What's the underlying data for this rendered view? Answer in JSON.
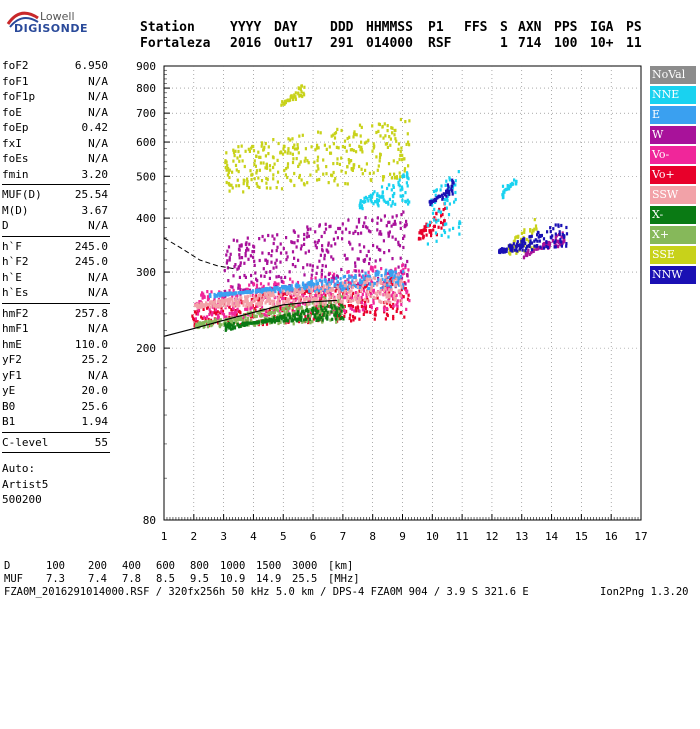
{
  "logo": {
    "line1": "Lowell",
    "line2": "DIGISONDE"
  },
  "header": {
    "labels": [
      "Station",
      "YYYY",
      "DAY",
      "DDD",
      "HHMMSS",
      "P1",
      "FFS",
      "S",
      "AXN",
      "PPS",
      "IGA",
      "PS"
    ],
    "values": [
      "Fortaleza",
      "2016",
      "Out17",
      "291",
      "014000",
      "RSF",
      "1",
      "714",
      "100",
      "10+",
      "11"
    ]
  },
  "params": {
    "group1": [
      {
        "k": "foF2",
        "v": "6.950"
      },
      {
        "k": "foF1",
        "v": "N/A"
      },
      {
        "k": "foF1p",
        "v": "N/A"
      },
      {
        "k": "foE",
        "v": "N/A"
      },
      {
        "k": "foEp",
        "v": "0.42"
      },
      {
        "k": "fxI",
        "v": "N/A"
      },
      {
        "k": "foEs",
        "v": "N/A"
      },
      {
        "k": "fmin",
        "v": "3.20"
      }
    ],
    "group2": [
      {
        "k": "MUF(D)",
        "v": "25.54"
      },
      {
        "k": "M(D)",
        "v": "3.67"
      },
      {
        "k": "D",
        "v": "N/A"
      }
    ],
    "group3": [
      {
        "k": "h`F",
        "v": "245.0"
      },
      {
        "k": "h`F2",
        "v": "245.0"
      },
      {
        "k": "h`E",
        "v": "N/A"
      },
      {
        "k": "h`Es",
        "v": "N/A"
      }
    ],
    "group4": [
      {
        "k": "hmF2",
        "v": "257.8"
      },
      {
        "k": "hmF1",
        "v": "N/A"
      },
      {
        "k": "hmE",
        "v": "110.0"
      },
      {
        "k": "yF2",
        "v": "25.2"
      },
      {
        "k": "yF1",
        "v": "N/A"
      },
      {
        "k": "yE",
        "v": "20.0"
      },
      {
        "k": "B0",
        "v": "25.6"
      },
      {
        "k": "B1",
        "v": "1.94"
      }
    ],
    "group5": [
      {
        "k": "C-level",
        "v": "55"
      }
    ],
    "auto": [
      "Auto:",
      "Artist5",
      "500200"
    ]
  },
  "legend": [
    {
      "label": "NoVal",
      "color": "#8c8c8c"
    },
    {
      "label": "NNE",
      "color": "#19d2f0"
    },
    {
      "label": "E",
      "color": "#3aa0f0"
    },
    {
      "label": "W",
      "color": "#a8129a"
    },
    {
      "label": "Vo-",
      "color": "#f0269a"
    },
    {
      "label": "Vo+",
      "color": "#e8002a"
    },
    {
      "label": "SSW",
      "color": "#f2a2a8"
    },
    {
      "label": "X-",
      "color": "#0a7a14"
    },
    {
      "label": "X+",
      "color": "#86b85a"
    },
    {
      "label": "SSE",
      "color": "#c8d21a"
    },
    {
      "label": "NNW",
      "color": "#1a10b4"
    }
  ],
  "footer": {
    "d_row": [
      "D",
      "100",
      "200",
      "400",
      "600",
      "800",
      "1000",
      "1500",
      "3000",
      "[km]"
    ],
    "muf_row": [
      "MUF",
      "7.3",
      "7.4",
      "7.8",
      "8.5",
      "9.5",
      "10.9",
      "14.9",
      "25.5",
      "[MHz]"
    ],
    "info": "FZA0M_2016291014000.RSF / 320fx256h 50 kHz 5.0 km / DPS-4 FZA0M 904 / 3.9 S 321.6 E",
    "version": "Ion2Png 1.3.20"
  },
  "chart_data": {
    "type": "scatter",
    "title": "",
    "xlabel": "",
    "ylabel": "",
    "xlim": [
      1,
      17
    ],
    "ylim": [
      80,
      900
    ],
    "y_scale": "log",
    "x_ticks": [
      1,
      2,
      3,
      4,
      5,
      6,
      7,
      8,
      9,
      10,
      11,
      12,
      13,
      14,
      15,
      16,
      17
    ],
    "y_ticks": [
      80,
      200,
      300,
      400,
      500,
      600,
      700,
      800,
      900
    ],
    "grid": true,
    "legend_position": "right",
    "series": [
      {
        "name": "Vo+",
        "color": "#e8002a",
        "regions": [
          {
            "x": [
              1.9,
              9.2
            ],
            "y": [
              225,
              300
            ]
          },
          {
            "x": [
              9.5,
              10.4
            ],
            "y": [
              360,
              440
            ]
          }
        ]
      },
      {
        "name": "Vo-",
        "color": "#f0269a",
        "regions": [
          {
            "x": [
              2.0,
              9.2
            ],
            "y": [
              235,
              320
            ]
          }
        ]
      },
      {
        "name": "W",
        "color": "#a8129a",
        "regions": [
          {
            "x": [
              3.0,
              9.2
            ],
            "y": [
              260,
              420
            ]
          },
          {
            "x": [
              13.0,
              14.4
            ],
            "y": [
              340,
              380
            ]
          }
        ]
      },
      {
        "name": "NNE",
        "color": "#19d2f0",
        "regions": [
          {
            "x": [
              7.5,
              9.2
            ],
            "y": [
              420,
              520
            ]
          },
          {
            "x": [
              9.8,
              10.9
            ],
            "y": [
              340,
              530
            ]
          },
          {
            "x": [
              12.3,
              12.8
            ],
            "y": [
              480,
              510
            ]
          }
        ]
      },
      {
        "name": "E",
        "color": "#3aa0f0",
        "regions": [
          {
            "x": [
              2.5,
              9.0
            ],
            "y": [
              270,
              310
            ]
          }
        ]
      },
      {
        "name": "SSE",
        "color": "#c8d21a",
        "regions": [
          {
            "x": [
              3.0,
              9.2
            ],
            "y": [
              460,
              690
            ]
          },
          {
            "x": [
              4.9,
              5.7
            ],
            "y": [
              750,
              850
            ]
          },
          {
            "x": [
              12.5,
              13.5
            ],
            "y": [
              330,
              410
            ]
          }
        ]
      },
      {
        "name": "X+",
        "color": "#86b85a",
        "regions": [
          {
            "x": [
              2.0,
              7.0
            ],
            "y": [
              225,
              270
            ]
          }
        ]
      },
      {
        "name": "X-",
        "color": "#0a7a14",
        "regions": [
          {
            "x": [
              3.0,
              7.0
            ],
            "y": [
              230,
              260
            ]
          }
        ]
      },
      {
        "name": "NNW",
        "color": "#1a10b4",
        "regions": [
          {
            "x": [
              12.2,
              14.5
            ],
            "y": [
              335,
              400
            ]
          },
          {
            "x": [
              9.8,
              10.7
            ],
            "y": [
              440,
              500
            ]
          }
        ]
      },
      {
        "name": "SSW",
        "color": "#f2a2a8",
        "regions": [
          {
            "x": [
              2.0,
              9.0
            ],
            "y": [
              250,
              300
            ]
          }
        ]
      }
    ],
    "profile_curve": {
      "style": "dashed",
      "x": [
        1.0,
        1.6,
        2.2,
        2.8,
        3.4
      ],
      "y": [
        360,
        340,
        320,
        310,
        305
      ]
    },
    "trace_curve": {
      "style": "solid",
      "x": [
        1.0,
        2.0,
        3.0,
        4.0,
        5.0,
        6.0,
        6.8
      ],
      "y": [
        213,
        222,
        232,
        242,
        252,
        256,
        258
      ]
    }
  }
}
